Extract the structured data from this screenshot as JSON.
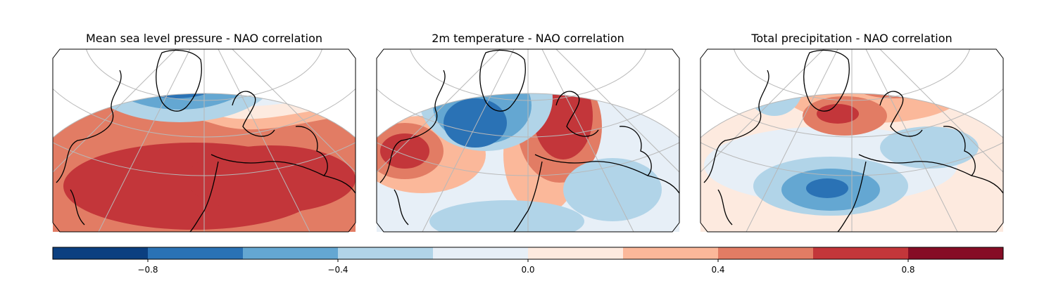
{
  "maps": [
    {
      "title": "Mean sea level pressure - NAO correlation"
    },
    {
      "title": "2m temperature - NAO correlation"
    },
    {
      "title": "Total precipitation - NAO correlation"
    }
  ],
  "colorbar": {
    "min": -1.0,
    "max": 1.0,
    "bounds": [
      -1.0,
      -0.8,
      -0.6,
      -0.4,
      -0.2,
      0.0,
      0.2,
      0.4,
      0.6,
      0.8,
      1.0
    ],
    "colors": [
      "#0b3f80",
      "#2a72b5",
      "#64a7d2",
      "#b1d4e8",
      "#e7eff7",
      "#fdeadf",
      "#fbb89a",
      "#e27c64",
      "#c3363a",
      "#860d25"
    ],
    "ticks": [
      {
        "value": -0.8,
        "label": "−0.8"
      },
      {
        "value": -0.4,
        "label": "−0.4"
      },
      {
        "value": 0.0,
        "label": "0.0"
      },
      {
        "value": 0.4,
        "label": "0.4"
      },
      {
        "value": 0.8,
        "label": "0.8"
      }
    ]
  }
}
